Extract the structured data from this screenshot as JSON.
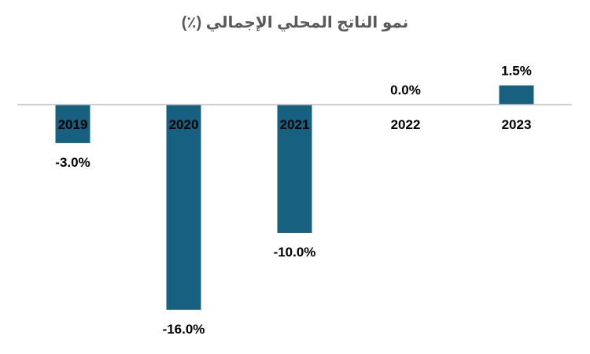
{
  "chart_data": {
    "type": "bar",
    "title": "نمو الناتج المحلي الإجمالي (٪)",
    "categories": [
      "2019",
      "2020",
      "2021",
      "2022",
      "2023"
    ],
    "values": [
      -3.0,
      -16.0,
      -10.0,
      0.0,
      1.5
    ],
    "data_labels": [
      "-3.0%",
      "-16.0%",
      "-10.0%",
      "0.0%",
      "1.5%"
    ],
    "xlabel": "",
    "ylabel": "",
    "ylim": [
      -16,
      1.5
    ],
    "grid": false,
    "legend": "none",
    "bar_color": "#17607f",
    "axis_color": "#bfbfbf"
  }
}
